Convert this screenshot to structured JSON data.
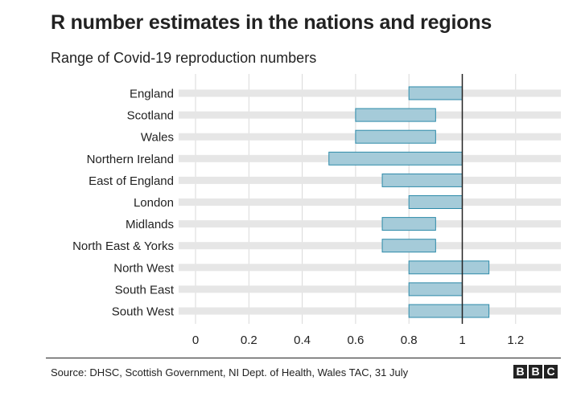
{
  "header": {
    "title": "R number estimates in the nations and regions",
    "subtitle": "Range of Covid-19 reproduction numbers"
  },
  "footer": {
    "source": "Source: DHSC, Scottish Government, NI Dept. of Health, Wales TAC, 31 July",
    "logo_letters": [
      "B",
      "B",
      "C"
    ]
  },
  "colors": {
    "bar_fill": "#a5cbd9",
    "bar_stroke": "#2d8aa9",
    "track": "#e6e6e6",
    "gridline": "#d9d9d9",
    "reference_line": "#222222"
  },
  "chart_data": {
    "type": "bar",
    "orientation": "horizontal-range",
    "title": "R number estimates in the nations and regions",
    "subtitle": "Range of Covid-19 reproduction numbers",
    "xlabel": "",
    "ylabel": "",
    "xlim": [
      0,
      1.38
    ],
    "xticks": [
      0,
      0.2,
      0.4,
      0.6,
      0.8,
      1,
      1.2
    ],
    "xtick_labels": [
      "0",
      "0.2",
      "0.4",
      "0.6",
      "0.8",
      "1",
      "1.2"
    ],
    "reference_line": 1,
    "grid": "vertical",
    "categories": [
      "England",
      "Scotland",
      "Wales",
      "Northern Ireland",
      "East of England",
      "London",
      "Midlands",
      "North East & Yorks",
      "North West",
      "South East",
      "South West"
    ],
    "ranges": [
      {
        "low": 0.8,
        "high": 1.0
      },
      {
        "low": 0.6,
        "high": 0.9
      },
      {
        "low": 0.6,
        "high": 0.9
      },
      {
        "low": 0.5,
        "high": 1.0
      },
      {
        "low": 0.7,
        "high": 1.0
      },
      {
        "low": 0.8,
        "high": 1.0
      },
      {
        "low": 0.7,
        "high": 0.9
      },
      {
        "low": 0.7,
        "high": 0.9
      },
      {
        "low": 0.8,
        "high": 1.1
      },
      {
        "low": 0.8,
        "high": 1.0
      },
      {
        "low": 0.8,
        "high": 1.1
      }
    ]
  }
}
